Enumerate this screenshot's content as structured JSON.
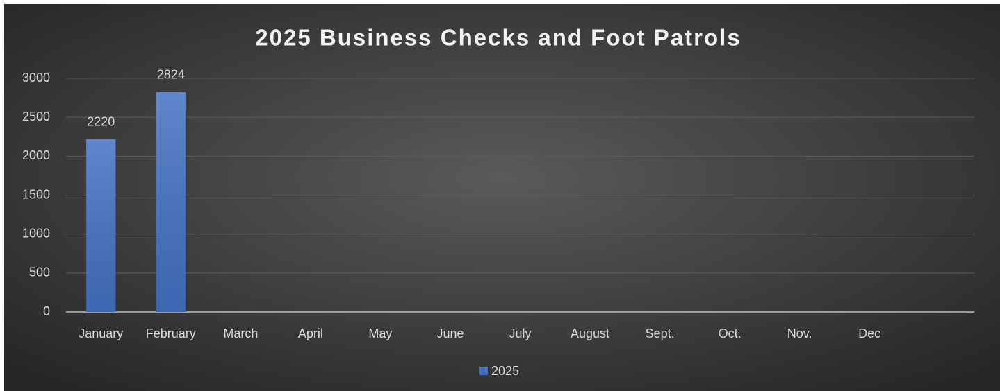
{
  "chart_data": {
    "type": "bar",
    "title": "2025 Business Checks and Foot Patrols",
    "categories": [
      "January",
      "February",
      "March",
      "April",
      "May",
      "June",
      "July",
      "August",
      "Sept.",
      "Oct.",
      "Nov.",
      "Dec",
      null
    ],
    "series": [
      {
        "name": "2025",
        "color": "#4472c4",
        "values": [
          2220,
          2824,
          null,
          null,
          null,
          null,
          null,
          null,
          null,
          null,
          null,
          null,
          null
        ]
      }
    ],
    "ylim": [
      0,
      3000
    ],
    "yticks": [
      0,
      500,
      1000,
      1500,
      2000,
      2500,
      3000
    ],
    "grid": true,
    "legend": "bottom",
    "data_labels": true
  }
}
